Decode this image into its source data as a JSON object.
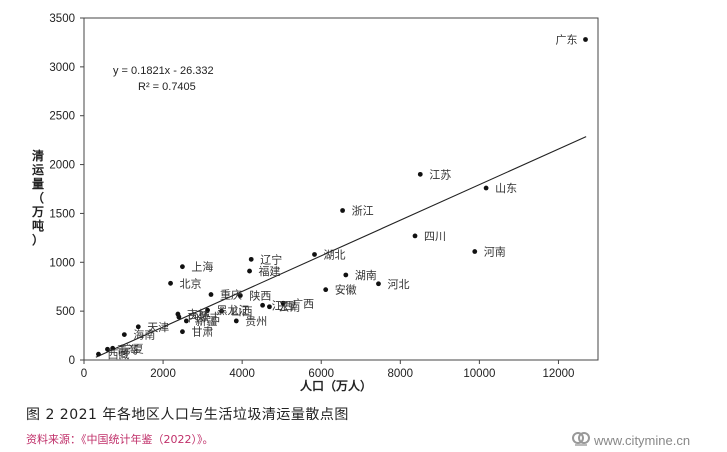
{
  "chart_data": {
    "type": "scatter",
    "title": "",
    "xlabel": "人口（万人）",
    "ylabel": "清运量（万吨）",
    "xlim": [
      0,
      13000
    ],
    "ylim": [
      0,
      3500
    ],
    "x_ticks": [
      0,
      2000,
      4000,
      6000,
      8000,
      10000,
      12000
    ],
    "y_ticks": [
      0,
      500,
      1000,
      1500,
      2000,
      2500,
      3000,
      3500
    ],
    "grid": false,
    "trendline": {
      "slope": 0.1821,
      "intercept": -26.332,
      "equation_text": "y = 0.1821x - 26.332",
      "r2_text": "R² = 0.7405"
    },
    "points": [
      {
        "label": "广东",
        "x": 12684,
        "y": 3280
      },
      {
        "label": "山东",
        "x": 10170,
        "y": 1760
      },
      {
        "label": "江苏",
        "x": 8505,
        "y": 1900
      },
      {
        "label": "浙江",
        "x": 6540,
        "y": 1530
      },
      {
        "label": "四川",
        "x": 8372,
        "y": 1270
      },
      {
        "label": "河南",
        "x": 9883,
        "y": 1110
      },
      {
        "label": "湖北",
        "x": 5830,
        "y": 1080
      },
      {
        "label": "湖南",
        "x": 6622,
        "y": 870
      },
      {
        "label": "河北",
        "x": 7448,
        "y": 780
      },
      {
        "label": "安徽",
        "x": 6113,
        "y": 720
      },
      {
        "label": "辽宁",
        "x": 4229,
        "y": 1030
      },
      {
        "label": "福建",
        "x": 4187,
        "y": 910
      },
      {
        "label": "上海",
        "x": 2489,
        "y": 955
      },
      {
        "label": "北京",
        "x": 2189,
        "y": 785
      },
      {
        "label": "重庆",
        "x": 3212,
        "y": 670
      },
      {
        "label": "陕西",
        "x": 3954,
        "y": 660
      },
      {
        "label": "广西",
        "x": 5037,
        "y": 580
      },
      {
        "label": "江西",
        "x": 4517,
        "y": 560
      },
      {
        "label": "云南",
        "x": 4690,
        "y": 545
      },
      {
        "label": "黑龙江",
        "x": 3125,
        "y": 510
      },
      {
        "label": "山西",
        "x": 3480,
        "y": 500
      },
      {
        "label": "吉林",
        "x": 2375,
        "y": 470
      },
      {
        "label": "内蒙古",
        "x": 2400,
        "y": 440
      },
      {
        "label": "新疆",
        "x": 2589,
        "y": 400
      },
      {
        "label": "贵州",
        "x": 3852,
        "y": 400
      },
      {
        "label": "天津",
        "x": 1373,
        "y": 340
      },
      {
        "label": "甘肃",
        "x": 2490,
        "y": 290
      },
      {
        "label": "海南",
        "x": 1020,
        "y": 260
      },
      {
        "label": "宁夏",
        "x": 725,
        "y": 120
      },
      {
        "label": "青海",
        "x": 594,
        "y": 110
      },
      {
        "label": "西藏",
        "x": 366,
        "y": 60
      }
    ]
  },
  "figure_caption": "图 2  2021 年各地区人口与生活垃圾清运量散点图",
  "source_note": "资料来源：《中国统计年鉴（2022）》。",
  "watermark": {
    "text": "www.citymine.cn"
  }
}
